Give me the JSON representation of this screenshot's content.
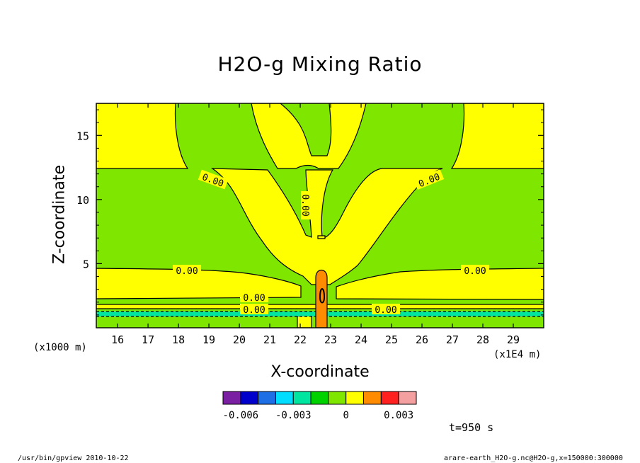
{
  "chart_data": {
    "type": "heatmap",
    "title": "H2O-g Mixing Ratio",
    "xlabel": "X-coordinate",
    "ylabel": "Z-coordinate",
    "x_unit": "(x1E4 m)",
    "y_unit": "(x1000 m)",
    "xlim": [
      15.3,
      30.0
    ],
    "ylim": [
      0.0,
      17.5
    ],
    "x_ticks": [
      16,
      17,
      18,
      19,
      20,
      21,
      22,
      23,
      24,
      25,
      26,
      27,
      28,
      29
    ],
    "y_ticks": [
      5,
      10,
      15
    ],
    "contour_labels": [
      "0.00",
      "0.00",
      "0.00",
      "0.00",
      "0.00",
      "0.00",
      "0.00",
      "0.00",
      "0.00"
    ],
    "colorbar": {
      "levels": [
        -0.007,
        -0.006,
        -0.005,
        -0.004,
        -0.003,
        -0.002,
        -0.001,
        0,
        0.001,
        0.002,
        0.003,
        0.004
      ],
      "colors": [
        "#7B1FA2",
        "#0000CD",
        "#1E6FE6",
        "#00DDFF",
        "#00E5A0",
        "#00D200",
        "#7FE600",
        "#FFFF00",
        "#FF8C00",
        "#FF2020",
        "#F5A0A0"
      ],
      "tick_labels": [
        "-0.006",
        "-0.003",
        "0",
        "0.003"
      ],
      "tick_values": [
        -0.006,
        -0.003,
        0,
        0.003
      ]
    }
  },
  "annotations": {
    "time": "t=950 s",
    "footer_left": "/usr/bin/gpview   2010-10-22",
    "footer_right": "arare-earth_H2O-g.nc@H2O-g,x=150000:300000"
  },
  "colors": {
    "green": "#7FE600",
    "yellow": "#FFFF00",
    "orange": "#FF8C00",
    "teal": "#00E5A0",
    "dark_green": "#00D200"
  }
}
